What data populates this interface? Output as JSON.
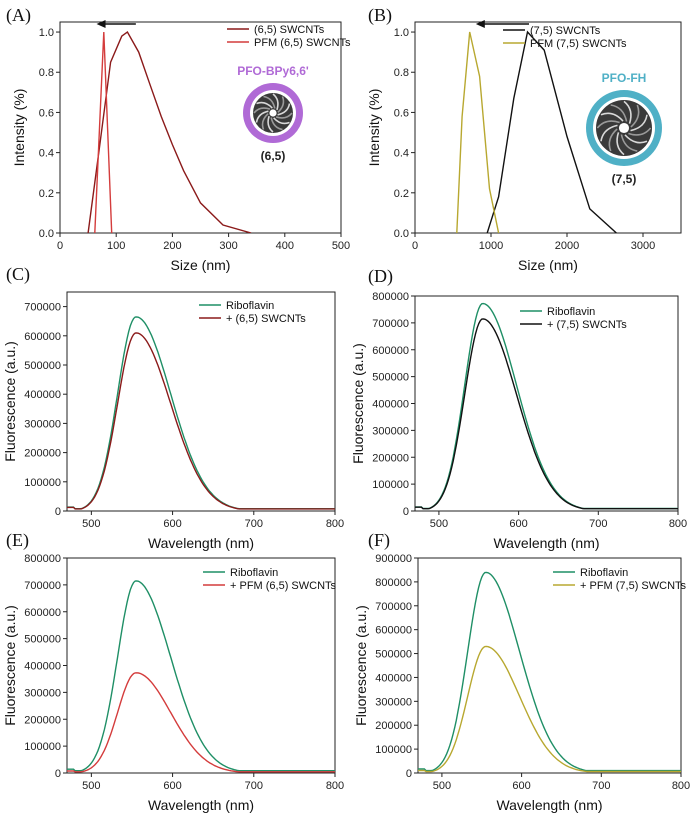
{
  "colors": {
    "dark_red": "#8b1a1a",
    "red": "#d43c3c",
    "black": "#111111",
    "olive": "#b8a830",
    "green": "#1f8f66",
    "purple": "#b06ad6",
    "teal": "#4fb0c6"
  },
  "chart_data": [
    {
      "id": "A",
      "panel_label": "(A)",
      "type": "line",
      "xlabel": "Size (nm)",
      "ylabel": "Intensity (%)",
      "xlim": [
        0,
        500
      ],
      "ylim": [
        0,
        1.05
      ],
      "xticks": [
        0,
        100,
        200,
        300,
        400,
        500
      ],
      "yticks": [
        0.0,
        0.2,
        0.4,
        0.6,
        0.8,
        1.0
      ],
      "ytick_decimals": 1,
      "series": [
        {
          "name": "(6,5) SWCNTs",
          "color": "#8b1a1a",
          "x": [
            50,
            70,
            90,
            110,
            120,
            140,
            160,
            180,
            200,
            220,
            250,
            290,
            340
          ],
          "y": [
            0.0,
            0.42,
            0.85,
            0.98,
            1.0,
            0.9,
            0.74,
            0.58,
            0.44,
            0.31,
            0.15,
            0.04,
            0.0
          ]
        },
        {
          "name": "PFM (6,5) SWCNTs",
          "color": "#d43c3c",
          "x": [
            62,
            78,
            92
          ],
          "y": [
            0.0,
            1.0,
            0.0
          ]
        }
      ],
      "arrow": {
        "from": 135,
        "to": 65,
        "y": 1.04
      },
      "inset": {
        "title": "PFO-BPy6,6'",
        "chirality": "(6,5)",
        "ring_color": "#b06ad6"
      }
    },
    {
      "id": "B",
      "panel_label": "(B)",
      "type": "line",
      "xlabel": "Size (nm)",
      "ylabel": "Intensity (%)",
      "xlim": [
        0,
        3500
      ],
      "ylim": [
        0,
        1.05
      ],
      "xticks": [
        0,
        1000,
        2000,
        3000
      ],
      "yticks": [
        0.0,
        0.2,
        0.4,
        0.6,
        0.8,
        1.0
      ],
      "ytick_decimals": 1,
      "series": [
        {
          "name": "(7,5) SWCNTs",
          "color": "#111111",
          "x": [
            950,
            1100,
            1300,
            1480,
            1700,
            2000,
            2300,
            2650
          ],
          "y": [
            0.0,
            0.18,
            0.67,
            1.0,
            0.91,
            0.48,
            0.12,
            0.0
          ]
        },
        {
          "name": "PFM (7,5) SWCNTs",
          "color": "#b8a830",
          "x": [
            550,
            620,
            720,
            850,
            980,
            1100
          ],
          "y": [
            0.0,
            0.58,
            1.0,
            0.78,
            0.22,
            0.0
          ]
        }
      ],
      "arrow": {
        "from": 1500,
        "to": 800,
        "y": 1.04
      },
      "inset": {
        "title": "PFO-FH",
        "chirality": "(7,5)",
        "ring_color": "#4fb0c6"
      }
    },
    {
      "id": "C",
      "panel_label": "(C)",
      "type": "line",
      "xlabel": "Wavelength (nm)",
      "ylabel": "Fluorescence (a.u.)",
      "xlim": [
        470,
        800
      ],
      "ylim": [
        0,
        750000
      ],
      "xticks": [
        500,
        600,
        700,
        800
      ],
      "yticks": [
        0,
        100000,
        200000,
        300000,
        400000,
        500000,
        600000,
        700000
      ],
      "ytick_decimals": 0,
      "series": [
        {
          "name": "Riboflavin",
          "color": "#1f8f66",
          "peak": 665000
        },
        {
          "name": "+ (6,5) SWCNTs",
          "color": "#8b1a1a",
          "peak": 610000
        }
      ]
    },
    {
      "id": "D",
      "panel_label": "(D)",
      "type": "line",
      "xlabel": "Wavelength (nm)",
      "ylabel": "Fluorescence (a.u.)",
      "xlim": [
        470,
        800
      ],
      "ylim": [
        0,
        800000
      ],
      "xticks": [
        500,
        600,
        700,
        800
      ],
      "yticks": [
        0,
        100000,
        200000,
        300000,
        400000,
        500000,
        600000,
        700000,
        800000
      ],
      "ytick_decimals": 0,
      "series": [
        {
          "name": "Riboflavin",
          "color": "#1f8f66",
          "peak": 772000
        },
        {
          "name": "+ (7,5) SWCNTs",
          "color": "#111111",
          "peak": 715000
        }
      ]
    },
    {
      "id": "E",
      "panel_label": "(E)",
      "type": "line",
      "xlabel": "Wavelength (nm)",
      "ylabel": "Fluorescence (a.u.)",
      "xlim": [
        470,
        800
      ],
      "ylim": [
        0,
        800000
      ],
      "xticks": [
        500,
        600,
        700,
        800
      ],
      "yticks": [
        0,
        100000,
        200000,
        300000,
        400000,
        500000,
        600000,
        700000,
        800000
      ],
      "ytick_decimals": 0,
      "series": [
        {
          "name": "Riboflavin",
          "color": "#1f8f66",
          "peak": 715000
        },
        {
          "name": "+ PFM (6,5) SWCNTs",
          "color": "#d43c3c",
          "peak": 373000
        }
      ]
    },
    {
      "id": "F",
      "panel_label": "(F)",
      "type": "line",
      "xlabel": "Wavelength (nm)",
      "ylabel": "Fluorescence (a.u.)",
      "xlim": [
        470,
        800
      ],
      "ylim": [
        0,
        900000
      ],
      "xticks": [
        500,
        600,
        700,
        800
      ],
      "yticks": [
        0,
        100000,
        200000,
        300000,
        400000,
        500000,
        600000,
        700000,
        800000,
        900000
      ],
      "ytick_decimals": 0,
      "series": [
        {
          "name": "Riboflavin",
          "color": "#1f8f66",
          "peak": 840000
        },
        {
          "name": "+ PFM (7,5) SWCNTs",
          "color": "#b8a830",
          "peak": 530000
        }
      ]
    }
  ]
}
